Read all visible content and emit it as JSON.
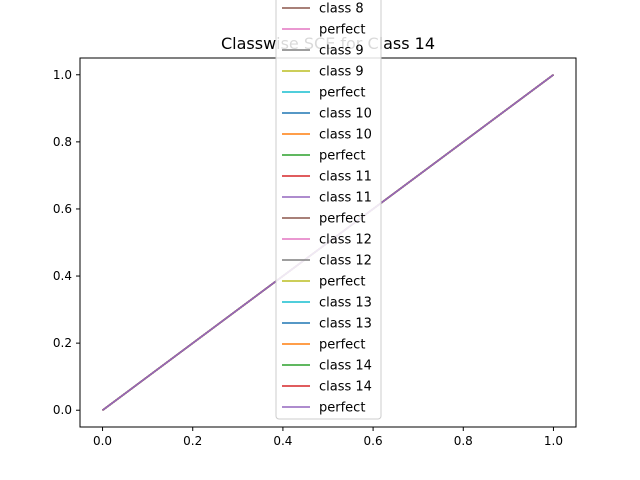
{
  "chart_data": {
    "type": "line",
    "title": "Classwise SCE for Class 14",
    "xlabel": "",
    "ylabel": "",
    "xlim": [
      -0.05,
      1.05
    ],
    "ylim": [
      -0.05,
      1.05
    ],
    "xticks": [
      "0.0",
      "0.2",
      "0.4",
      "0.6",
      "0.8",
      "1.0"
    ],
    "yticks": [
      "0.0",
      "0.2",
      "0.4",
      "0.6",
      "0.8",
      "1.0"
    ],
    "grid": false,
    "legend_position": "upper-center",
    "series": [
      {
        "name": "class 8",
        "color": "#8c564b",
        "x": [
          0,
          1
        ],
        "y": [
          0,
          1
        ]
      },
      {
        "name": "perfect",
        "color": "#e377c2",
        "x": [
          0,
          1
        ],
        "y": [
          0,
          1
        ]
      },
      {
        "name": "class 9",
        "color": "#7f7f7f",
        "x": [
          0,
          1
        ],
        "y": [
          0,
          1
        ]
      },
      {
        "name": "class 9",
        "color": "#bcbd22",
        "x": [
          0,
          1
        ],
        "y": [
          0,
          1
        ]
      },
      {
        "name": "perfect",
        "color": "#17becf",
        "x": [
          0,
          1
        ],
        "y": [
          0,
          1
        ]
      },
      {
        "name": "class 10",
        "color": "#1f77b4",
        "x": [
          0,
          1
        ],
        "y": [
          0,
          1
        ]
      },
      {
        "name": "class 10",
        "color": "#ff7f0e",
        "x": [
          0,
          1
        ],
        "y": [
          0,
          1
        ]
      },
      {
        "name": "perfect",
        "color": "#2ca02c",
        "x": [
          0,
          1
        ],
        "y": [
          0,
          1
        ]
      },
      {
        "name": "class 11",
        "color": "#d62728",
        "x": [
          0,
          1
        ],
        "y": [
          0,
          1
        ]
      },
      {
        "name": "class 11",
        "color": "#9467bd",
        "x": [
          0,
          1
        ],
        "y": [
          0,
          1
        ]
      },
      {
        "name": "perfect",
        "color": "#8c564b",
        "x": [
          0,
          1
        ],
        "y": [
          0,
          1
        ]
      },
      {
        "name": "class 12",
        "color": "#e377c2",
        "x": [
          0,
          1
        ],
        "y": [
          0,
          1
        ]
      },
      {
        "name": "class 12",
        "color": "#7f7f7f",
        "x": [
          0,
          1
        ],
        "y": [
          0,
          1
        ]
      },
      {
        "name": "perfect",
        "color": "#bcbd22",
        "x": [
          0,
          1
        ],
        "y": [
          0,
          1
        ]
      },
      {
        "name": "class 13",
        "color": "#17becf",
        "x": [
          0,
          1
        ],
        "y": [
          0,
          1
        ]
      },
      {
        "name": "class 13",
        "color": "#1f77b4",
        "x": [
          0,
          1
        ],
        "y": [
          0,
          1
        ]
      },
      {
        "name": "perfect",
        "color": "#ff7f0e",
        "x": [
          0,
          1
        ],
        "y": [
          0,
          1
        ]
      },
      {
        "name": "class 14",
        "color": "#2ca02c",
        "x": [
          0,
          1
        ],
        "y": [
          0,
          1
        ]
      },
      {
        "name": "class 14",
        "color": "#d62728",
        "x": [
          0,
          1
        ],
        "y": [
          0,
          1
        ]
      },
      {
        "name": "perfect",
        "color": "#9467bd",
        "x": [
          0,
          1
        ],
        "y": [
          0,
          1
        ]
      }
    ]
  }
}
